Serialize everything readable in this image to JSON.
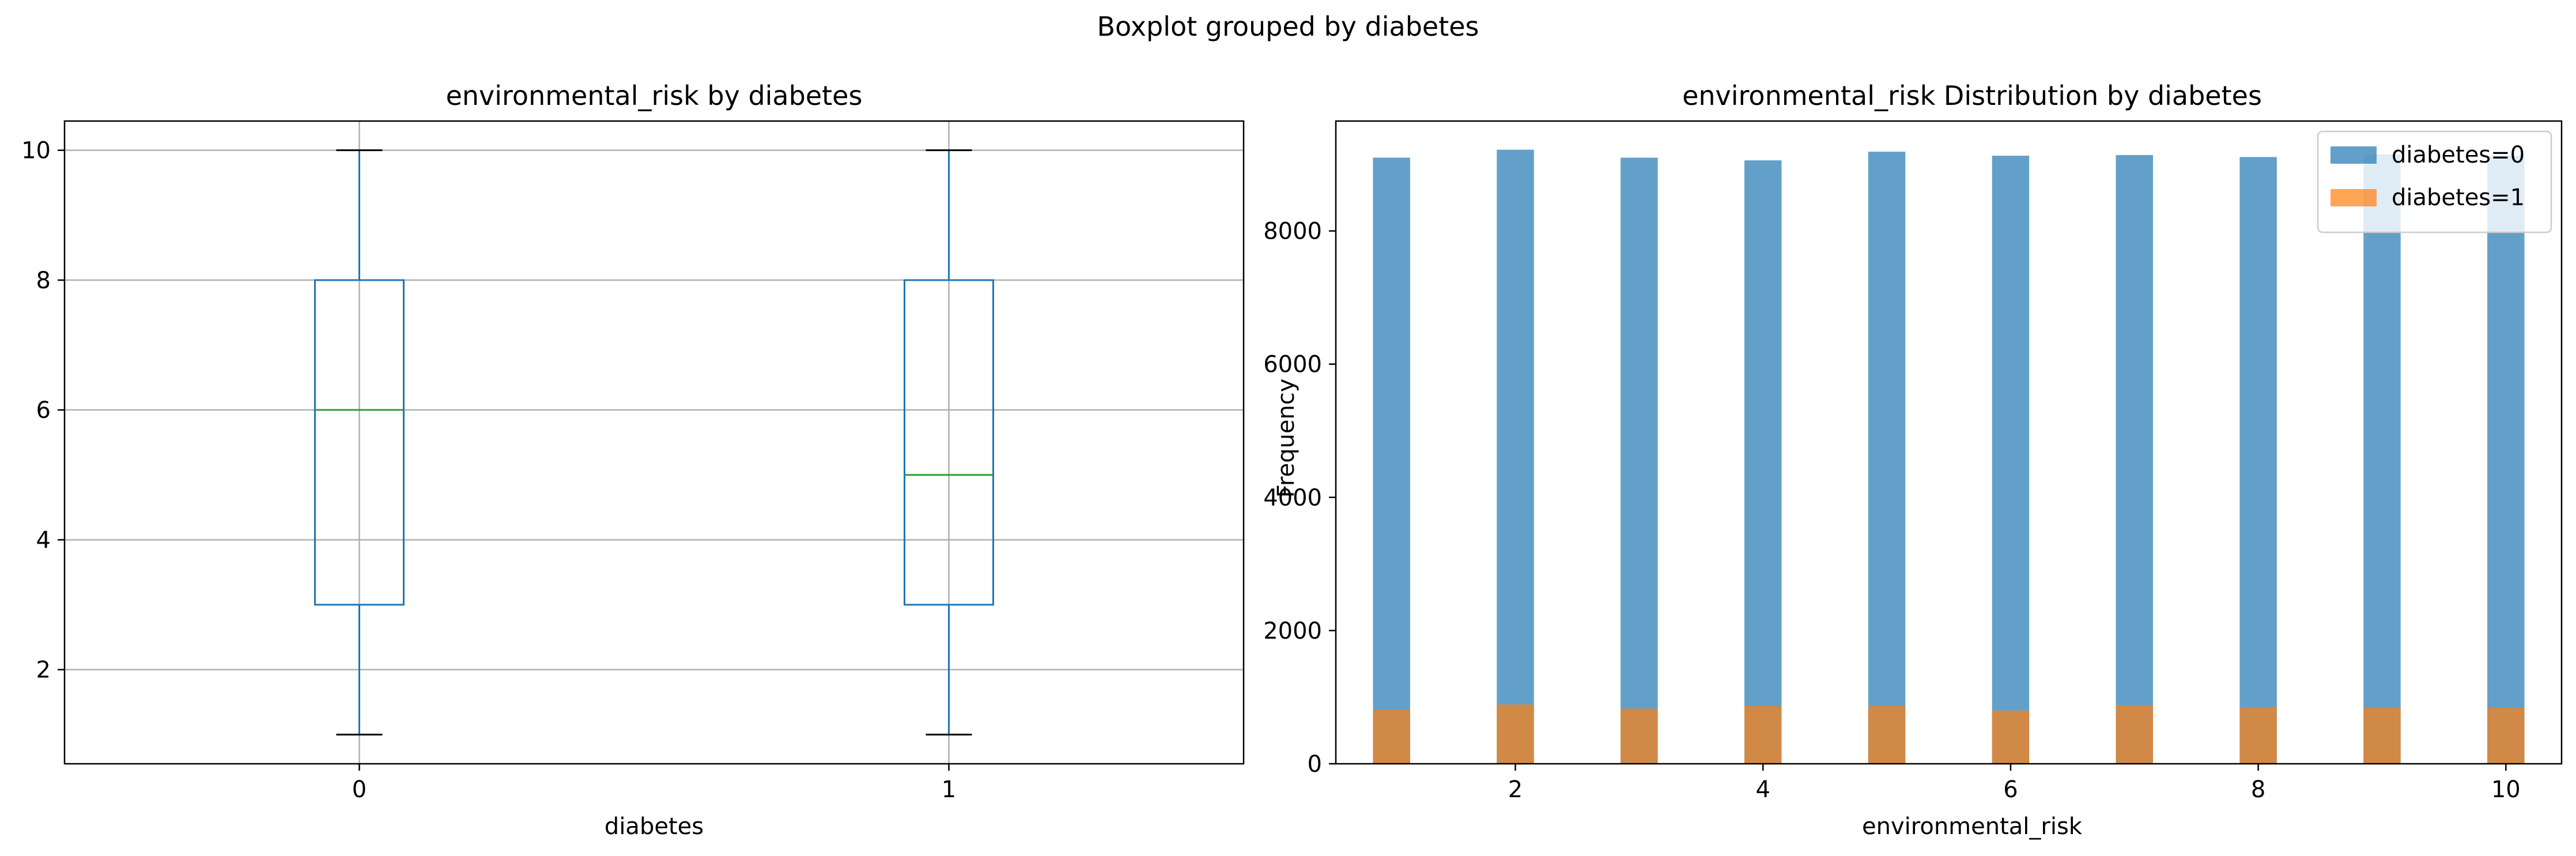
{
  "figure": {
    "suptitle": "Boxplot grouped by diabetes"
  },
  "chart_data": [
    {
      "type": "box",
      "title": "environmental_risk by diabetes",
      "xlabel": "diabetes",
      "ylabel": "",
      "categories": [
        "0",
        "1"
      ],
      "ylim": [
        0.55,
        10.45
      ],
      "yticks": [
        2,
        4,
        6,
        8,
        10
      ],
      "grid": true,
      "boxes": [
        {
          "category": "0",
          "whisker_low": 1,
          "q1": 3,
          "median": 6,
          "q3": 8,
          "whisker_high": 10
        },
        {
          "category": "1",
          "whisker_low": 1,
          "q1": 3,
          "median": 5,
          "q3": 8,
          "whisker_high": 10
        }
      ],
      "colors": {
        "box": "#1f77b4",
        "median": "#2ca02c",
        "cap": "#000000",
        "grid": "#b0b0b0"
      }
    },
    {
      "type": "bar",
      "title": "environmental_risk Distribution by diabetes",
      "xlabel": "environmental_risk",
      "ylabel": "Frequency",
      "xlim": [
        0.55,
        10.45
      ],
      "ylim": [
        0,
        9650
      ],
      "xticks": [
        2,
        4,
        6,
        8,
        10
      ],
      "yticks": [
        0,
        2000,
        4000,
        6000,
        8000
      ],
      "bar_width": 0.3,
      "grid": false,
      "legend_position": "top-right",
      "series": [
        {
          "name": "diabetes=0",
          "color": "#1f77b4",
          "opacity": 0.7,
          "x": [
            1,
            2,
            3,
            4,
            5,
            6,
            7,
            8,
            9,
            10
          ],
          "values": [
            9100,
            9220,
            9100,
            9060,
            9190,
            9130,
            9140,
            9110,
            9150,
            9130
          ]
        },
        {
          "name": "diabetes=1",
          "color": "#ff7f0e",
          "opacity": 0.7,
          "x": [
            1,
            2,
            3,
            4,
            5,
            6,
            7,
            8,
            9,
            10
          ],
          "values": [
            810,
            890,
            830,
            870,
            870,
            800,
            880,
            850,
            850,
            840
          ]
        }
      ]
    }
  ]
}
